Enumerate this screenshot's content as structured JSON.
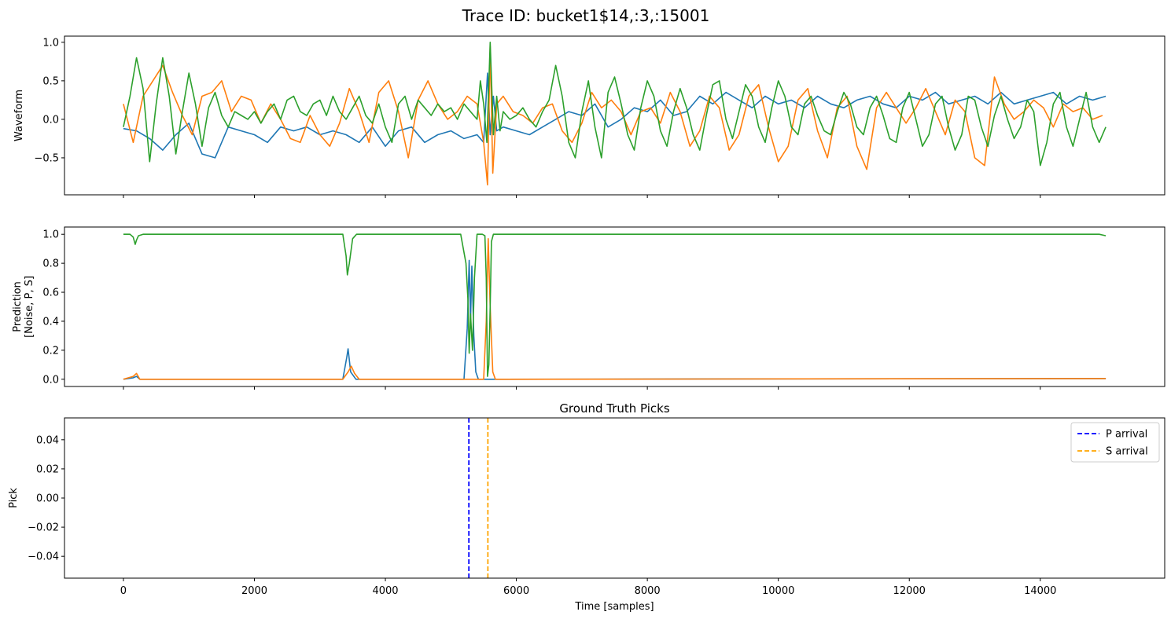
{
  "figure": {
    "suptitle": "Trace ID: bucket1$14,:3,:15001"
  },
  "chart_data": [
    {
      "type": "line",
      "title": "",
      "xlabel": "",
      "ylabel": "Waveform",
      "xlim": [
        -900,
        15900
      ],
      "ylim": [
        -0.98,
        1.08
      ],
      "yticks": [
        -0.5,
        0.0,
        0.5,
        1.0
      ],
      "ytick_labels": [
        "−0.5",
        "0.0",
        "0.5",
        "1.0"
      ],
      "xticks": [
        0,
        2000,
        4000,
        6000,
        8000,
        10000,
        12000,
        14000
      ],
      "show_xtick_labels": false,
      "grid": false,
      "series": [
        {
          "color": "#1f77b4",
          "x": [
            0,
            200,
            400,
            600,
            800,
            1000,
            1200,
            1400,
            1600,
            1800,
            2000,
            2200,
            2400,
            2600,
            2800,
            3000,
            3200,
            3400,
            3600,
            3800,
            4000,
            4200,
            4400,
            4600,
            4800,
            5000,
            5200,
            5400,
            5500,
            5560,
            5600,
            5650,
            5700,
            5800,
            6000,
            6200,
            6400,
            6600,
            6800,
            7000,
            7200,
            7400,
            7600,
            7800,
            8000,
            8200,
            8400,
            8600,
            8800,
            9000,
            9200,
            9400,
            9600,
            9800,
            10000,
            10200,
            10400,
            10600,
            10800,
            11000,
            11200,
            11400,
            11600,
            11800,
            12000,
            12200,
            12400,
            12600,
            12800,
            13000,
            13200,
            13400,
            13600,
            13800,
            14000,
            14200,
            14400,
            14600,
            14800,
            15000
          ],
          "y": [
            -0.12,
            -0.15,
            -0.25,
            -0.4,
            -0.2,
            -0.05,
            -0.45,
            -0.5,
            -0.1,
            -0.15,
            -0.2,
            -0.3,
            -0.1,
            -0.15,
            -0.1,
            -0.2,
            -0.15,
            -0.2,
            -0.3,
            -0.1,
            -0.35,
            -0.15,
            -0.1,
            -0.3,
            -0.2,
            -0.15,
            -0.25,
            -0.2,
            -0.3,
            0.6,
            -0.2,
            0.3,
            -0.15,
            -0.1,
            -0.15,
            -0.2,
            -0.1,
            0.0,
            0.1,
            0.05,
            0.2,
            -0.1,
            0.0,
            0.15,
            0.1,
            0.25,
            0.05,
            0.1,
            0.3,
            0.2,
            0.35,
            0.25,
            0.15,
            0.3,
            0.2,
            0.25,
            0.15,
            0.3,
            0.2,
            0.15,
            0.25,
            0.3,
            0.2,
            0.15,
            0.3,
            0.25,
            0.35,
            0.2,
            0.25,
            0.3,
            0.2,
            0.35,
            0.2,
            0.25,
            0.3,
            0.35,
            0.2,
            0.3,
            0.25,
            0.3
          ]
        },
        {
          "color": "#ff7f0e",
          "x": [
            0,
            150,
            300,
            450,
            600,
            750,
            900,
            1050,
            1200,
            1350,
            1500,
            1650,
            1800,
            1950,
            2100,
            2250,
            2400,
            2550,
            2700,
            2850,
            3000,
            3150,
            3300,
            3450,
            3600,
            3750,
            3900,
            4050,
            4200,
            4350,
            4500,
            4650,
            4800,
            4950,
            5100,
            5250,
            5400,
            5500,
            5560,
            5600,
            5640,
            5700,
            5800,
            5950,
            6100,
            6250,
            6400,
            6550,
            6700,
            6850,
            7000,
            7150,
            7300,
            7450,
            7600,
            7750,
            7900,
            8050,
            8200,
            8350,
            8500,
            8650,
            8800,
            8950,
            9100,
            9250,
            9400,
            9550,
            9700,
            9850,
            10000,
            10150,
            10300,
            10450,
            10600,
            10750,
            10900,
            11050,
            11200,
            11350,
            11500,
            11650,
            11800,
            11950,
            12100,
            12250,
            12400,
            12550,
            12700,
            12850,
            13000,
            13150,
            13300,
            13450,
            13600,
            13750,
            13900,
            14050,
            14200,
            14350,
            14500,
            14650,
            14800,
            14950
          ],
          "y": [
            0.2,
            -0.3,
            0.3,
            0.5,
            0.7,
            0.35,
            0.05,
            -0.2,
            0.3,
            0.35,
            0.5,
            0.1,
            0.3,
            0.25,
            -0.05,
            0.2,
            0.0,
            -0.25,
            -0.3,
            0.05,
            -0.2,
            -0.35,
            -0.05,
            0.4,
            0.1,
            -0.3,
            0.35,
            0.5,
            0.1,
            -0.5,
            0.25,
            0.5,
            0.2,
            0.0,
            0.1,
            0.3,
            0.2,
            -0.3,
            -0.85,
            0.95,
            -0.7,
            0.2,
            0.3,
            0.1,
            0.05,
            -0.05,
            0.15,
            0.2,
            -0.15,
            -0.3,
            -0.05,
            0.35,
            0.15,
            0.25,
            0.1,
            -0.2,
            0.1,
            0.15,
            -0.05,
            0.35,
            0.1,
            -0.35,
            -0.15,
            0.3,
            0.15,
            -0.4,
            -0.2,
            0.3,
            0.45,
            -0.1,
            -0.55,
            -0.35,
            0.25,
            0.4,
            -0.15,
            -0.5,
            0.15,
            0.3,
            -0.35,
            -0.65,
            0.15,
            0.35,
            0.15,
            -0.05,
            0.15,
            0.4,
            0.1,
            -0.2,
            0.25,
            0.1,
            -0.5,
            -0.6,
            0.55,
            0.2,
            0.0,
            0.1,
            0.25,
            0.15,
            -0.1,
            0.2,
            0.1,
            0.15,
            0.0,
            0.05
          ]
        },
        {
          "color": "#2ca02c",
          "x": [
            0,
            100,
            200,
            300,
            400,
            500,
            600,
            700,
            800,
            900,
            1000,
            1100,
            1200,
            1300,
            1400,
            1500,
            1600,
            1700,
            1800,
            1900,
            2000,
            2100,
            2200,
            2300,
            2400,
            2500,
            2600,
            2700,
            2800,
            2900,
            3000,
            3100,
            3200,
            3300,
            3400,
            3500,
            3600,
            3700,
            3800,
            3900,
            4000,
            4100,
            4200,
            4300,
            4400,
            4500,
            4600,
            4700,
            4800,
            4900,
            5000,
            5100,
            5200,
            5300,
            5400,
            5450,
            5500,
            5550,
            5600,
            5650,
            5700,
            5750,
            5800,
            5900,
            6000,
            6100,
            6200,
            6300,
            6400,
            6500,
            6600,
            6700,
            6800,
            6900,
            7000,
            7100,
            7200,
            7300,
            7400,
            7500,
            7600,
            7700,
            7800,
            7900,
            8000,
            8100,
            8200,
            8300,
            8400,
            8500,
            8600,
            8700,
            8800,
            8900,
            9000,
            9100,
            9200,
            9300,
            9400,
            9500,
            9600,
            9700,
            9800,
            9900,
            10000,
            10100,
            10200,
            10300,
            10400,
            10500,
            10600,
            10700,
            10800,
            10900,
            11000,
            11100,
            11200,
            11300,
            11400,
            11500,
            11600,
            11700,
            11800,
            11900,
            12000,
            12100,
            12200,
            12300,
            12400,
            12500,
            12600,
            12700,
            12800,
            12900,
            13000,
            13100,
            13200,
            13300,
            13400,
            13500,
            13600,
            13700,
            13800,
            13900,
            14000,
            14100,
            14200,
            14300,
            14400,
            14500,
            14600,
            14700,
            14800,
            14900,
            15000
          ],
          "y": [
            -0.1,
            0.3,
            0.8,
            0.4,
            -0.55,
            0.2,
            0.8,
            0.3,
            -0.45,
            0.1,
            0.6,
            0.2,
            -0.35,
            0.15,
            0.35,
            0.05,
            -0.1,
            0.1,
            0.05,
            0.0,
            0.1,
            -0.05,
            0.1,
            0.2,
            0.0,
            0.25,
            0.3,
            0.1,
            0.05,
            0.2,
            0.25,
            0.05,
            0.3,
            0.1,
            0.0,
            0.15,
            0.3,
            0.05,
            -0.05,
            0.2,
            -0.1,
            -0.3,
            0.2,
            0.3,
            0.0,
            0.25,
            0.15,
            0.05,
            0.2,
            0.1,
            0.15,
            0.0,
            0.2,
            0.1,
            0.0,
            0.5,
            0.2,
            -0.3,
            1.0,
            -0.2,
            0.3,
            -0.15,
            0.1,
            0.0,
            0.05,
            0.15,
            0.0,
            -0.1,
            0.1,
            0.25,
            0.7,
            0.3,
            -0.3,
            -0.5,
            0.1,
            0.5,
            -0.1,
            -0.5,
            0.35,
            0.55,
            0.2,
            -0.2,
            -0.4,
            0.15,
            0.5,
            0.3,
            -0.15,
            -0.35,
            0.1,
            0.4,
            0.15,
            -0.2,
            -0.4,
            0.05,
            0.45,
            0.5,
            0.0,
            -0.25,
            0.1,
            0.45,
            0.3,
            -0.1,
            -0.3,
            0.15,
            0.5,
            0.3,
            -0.1,
            -0.2,
            0.2,
            0.3,
            0.05,
            -0.15,
            -0.2,
            0.1,
            0.35,
            0.2,
            -0.1,
            -0.2,
            0.15,
            0.3,
            0.05,
            -0.25,
            -0.3,
            0.15,
            0.35,
            0.0,
            -0.35,
            -0.2,
            0.2,
            0.3,
            -0.1,
            -0.4,
            -0.2,
            0.3,
            0.25,
            -0.1,
            -0.35,
            0.05,
            0.3,
            0.0,
            -0.25,
            -0.1,
            0.25,
            0.1,
            -0.6,
            -0.3,
            0.2,
            0.35,
            -0.1,
            -0.35,
            0.0,
            0.35,
            -0.1,
            -0.3,
            -0.1
          ]
        }
      ]
    },
    {
      "type": "line",
      "title": "",
      "xlabel": "",
      "ylabel": "Prediction\n[Noise, P, S]",
      "xlim": [
        -900,
        15900
      ],
      "ylim": [
        -0.05,
        1.05
      ],
      "yticks": [
        0.0,
        0.2,
        0.4,
        0.6,
        0.8,
        1.0
      ],
      "ytick_labels": [
        "0.0",
        "0.2",
        "0.4",
        "0.6",
        "0.8",
        "1.0"
      ],
      "xticks": [
        0,
        2000,
        4000,
        6000,
        8000,
        10000,
        12000,
        14000
      ],
      "show_xtick_labels": false,
      "grid": false,
      "series": [
        {
          "color": "#1f77b4",
          "x": [
            0,
            150,
            200,
            250,
            3350,
            3410,
            3430,
            3470,
            3550,
            5200,
            5250,
            5280,
            5300,
            5320,
            5350,
            5380,
            5420,
            15000
          ],
          "y": [
            0.0,
            0.01,
            0.02,
            0.0,
            0.0,
            0.15,
            0.21,
            0.05,
            0.0,
            0.0,
            0.35,
            0.82,
            0.4,
            0.78,
            0.3,
            0.05,
            0.0,
            0.005
          ]
        },
        {
          "color": "#ff7f0e",
          "x": [
            0,
            150,
            200,
            250,
            3350,
            3430,
            3480,
            3530,
            3600,
            5500,
            5540,
            5570,
            5600,
            5640,
            5680,
            15000
          ],
          "y": [
            0.0,
            0.02,
            0.04,
            0.0,
            0.0,
            0.05,
            0.09,
            0.04,
            0.0,
            0.0,
            0.4,
            0.97,
            0.5,
            0.05,
            0.0,
            0.005
          ]
        },
        {
          "color": "#2ca02c",
          "x": [
            0,
            100,
            150,
            180,
            200,
            230,
            300,
            3350,
            3400,
            3420,
            3450,
            3500,
            3560,
            5150,
            5230,
            5260,
            5280,
            5300,
            5330,
            5360,
            5400,
            5480,
            5520,
            5540,
            5560,
            5580,
            5600,
            5620,
            5650,
            5700,
            14900,
            15000
          ],
          "y": [
            1.0,
            1.0,
            0.98,
            0.93,
            0.96,
            0.99,
            1.0,
            1.0,
            0.85,
            0.72,
            0.8,
            0.97,
            1.0,
            1.0,
            0.8,
            0.55,
            0.18,
            0.45,
            0.2,
            0.7,
            1.0,
            1.0,
            0.99,
            0.7,
            0.02,
            0.1,
            0.5,
            0.95,
            1.0,
            1.0,
            1.0,
            0.99
          ]
        }
      ]
    },
    {
      "type": "line",
      "title": "Ground Truth Picks",
      "xlabel": "Time [samples]",
      "ylabel": "Pick",
      "xlim": [
        -900,
        15900
      ],
      "ylim": [
        -0.055,
        0.055
      ],
      "yticks": [
        -0.04,
        -0.02,
        0.0,
        0.02,
        0.04
      ],
      "ytick_labels": [
        "−0.04",
        "−0.02",
        "0.00",
        "0.02",
        "0.04"
      ],
      "xticks": [
        0,
        2000,
        4000,
        6000,
        8000,
        10000,
        12000,
        14000
      ],
      "xtick_labels": [
        "0",
        "2000",
        "4000",
        "6000",
        "8000",
        "10000",
        "12000",
        "14000"
      ],
      "show_xtick_labels": true,
      "grid": false,
      "legend_position": "top-right",
      "vlines": [
        {
          "name": "P arrival",
          "x": 5275,
          "color": "#0000ff",
          "style": "dashed"
        },
        {
          "name": "S arrival",
          "x": 5565,
          "color": "#ffa500",
          "style": "dashed"
        }
      ]
    }
  ]
}
